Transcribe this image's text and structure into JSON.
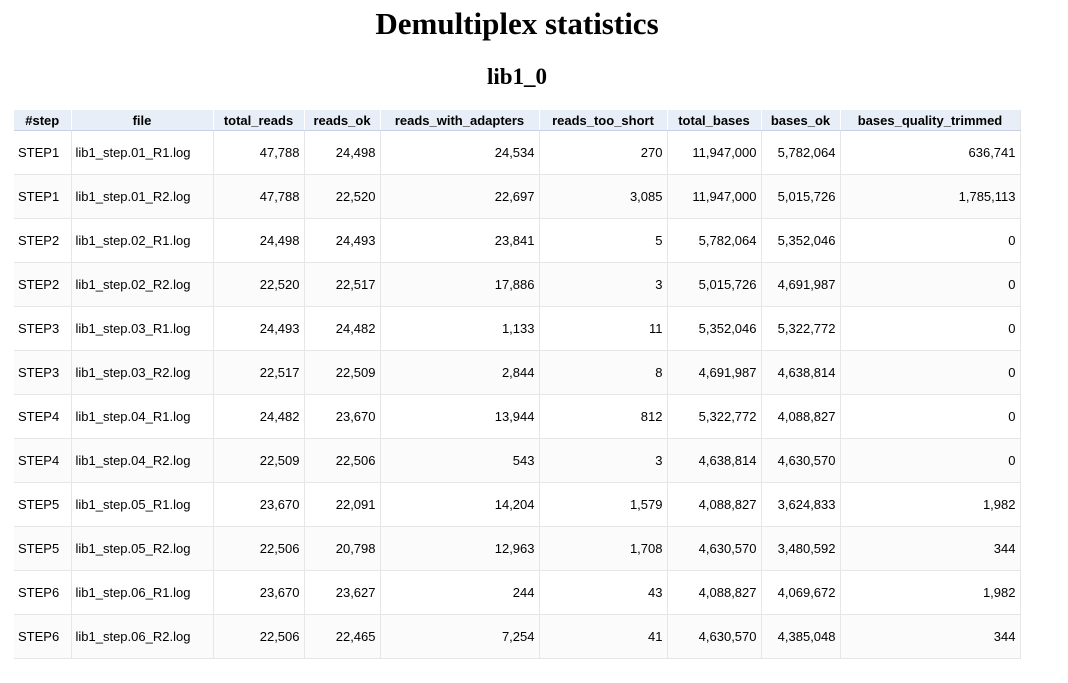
{
  "title": "Demultiplex statistics",
  "subtitle": "lib1_0",
  "table": {
    "columns": [
      "#step",
      "file",
      "total_reads",
      "reads_ok",
      "reads_with_adapters",
      "reads_too_short",
      "total_bases",
      "bases_ok",
      "bases_quality_trimmed"
    ],
    "rows": [
      [
        "STEP1",
        "lib1_step.01_R1.log",
        "47,788",
        "24,498",
        "24,534",
        "270",
        "11,947,000",
        "5,782,064",
        "636,741"
      ],
      [
        "STEP1",
        "lib1_step.01_R2.log",
        "47,788",
        "22,520",
        "22,697",
        "3,085",
        "11,947,000",
        "5,015,726",
        "1,785,113"
      ],
      [
        "STEP2",
        "lib1_step.02_R1.log",
        "24,498",
        "24,493",
        "23,841",
        "5",
        "5,782,064",
        "5,352,046",
        "0"
      ],
      [
        "STEP2",
        "lib1_step.02_R2.log",
        "22,520",
        "22,517",
        "17,886",
        "3",
        "5,015,726",
        "4,691,987",
        "0"
      ],
      [
        "STEP3",
        "lib1_step.03_R1.log",
        "24,493",
        "24,482",
        "1,133",
        "11",
        "5,352,046",
        "5,322,772",
        "0"
      ],
      [
        "STEP3",
        "lib1_step.03_R2.log",
        "22,517",
        "22,509",
        "2,844",
        "8",
        "4,691,987",
        "4,638,814",
        "0"
      ],
      [
        "STEP4",
        "lib1_step.04_R1.log",
        "24,482",
        "23,670",
        "13,944",
        "812",
        "5,322,772",
        "4,088,827",
        "0"
      ],
      [
        "STEP4",
        "lib1_step.04_R2.log",
        "22,509",
        "22,506",
        "543",
        "3",
        "4,638,814",
        "4,630,570",
        "0"
      ],
      [
        "STEP5",
        "lib1_step.05_R1.log",
        "23,670",
        "22,091",
        "14,204",
        "1,579",
        "4,088,827",
        "3,624,833",
        "1,982"
      ],
      [
        "STEP5",
        "lib1_step.05_R2.log",
        "22,506",
        "20,798",
        "12,963",
        "1,708",
        "4,630,570",
        "3,480,592",
        "344"
      ],
      [
        "STEP6",
        "lib1_step.06_R1.log",
        "23,670",
        "23,627",
        "244",
        "43",
        "4,088,827",
        "4,069,672",
        "1,982"
      ],
      [
        "STEP6",
        "lib1_step.06_R2.log",
        "22,506",
        "22,465",
        "7,254",
        "41",
        "4,630,570",
        "4,385,048",
        "344"
      ]
    ]
  }
}
